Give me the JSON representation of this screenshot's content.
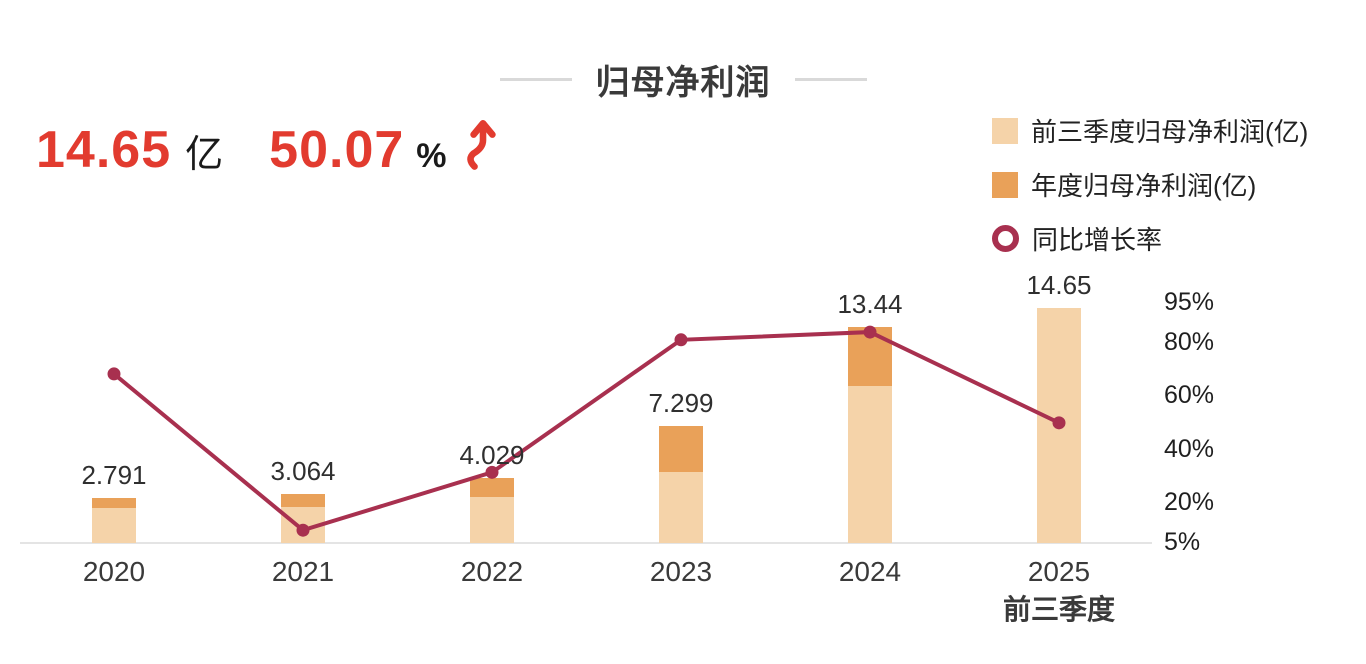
{
  "title": "归母净利润",
  "stat": {
    "value": "14.65",
    "unit": "亿",
    "growth": "50.07",
    "growth_unit": "%"
  },
  "legend": [
    {
      "label": "前三季度归母净利润(亿)",
      "swatch": "square",
      "color": "#f5d3a9"
    },
    {
      "label": "年度归母净利润(亿)",
      "swatch": "square",
      "color": "#e9a159"
    },
    {
      "label": "同比增长率",
      "swatch": "ring",
      "color": "#a8304f"
    }
  ],
  "colors": {
    "accent_red": "#e23b2f",
    "bar_q3": "#f5d3a9",
    "bar_annual": "#e9a159",
    "growth_line": "#a8304f",
    "axis": "#e4e4e4",
    "text": "#3a3a3a"
  },
  "chart_data": {
    "type": "bar",
    "subtype": "stacked-bar-with-line",
    "title": "归母净利润",
    "categories": [
      "2020",
      "2021",
      "2022",
      "2023",
      "2024",
      "2025"
    ],
    "category_sublabels": [
      "",
      "",
      "",
      "",
      "",
      "前三季度"
    ],
    "series": [
      {
        "name": "前三季度归母净利润(亿)",
        "type": "bar",
        "color": "#f5d3a9",
        "values": [
          2.18,
          2.24,
          2.87,
          4.43,
          9.76,
          14.65
        ]
      },
      {
        "name": "年度归母净利润(亿)",
        "type": "bar",
        "color": "#e9a159",
        "values": [
          2.791,
          3.064,
          4.029,
          7.299,
          13.44,
          null
        ]
      },
      {
        "name": "同比增长率",
        "type": "line",
        "color": "#a8304f",
        "unit": "%",
        "values": [
          68.4,
          9.8,
          31.5,
          81.2,
          84.1,
          50.07
        ]
      }
    ],
    "bar_labels": [
      "2.791",
      "3.064",
      "4.029",
      "7.299",
      "13.44",
      "14.65"
    ],
    "right_axis": {
      "ticks": [
        "95%",
        "80%",
        "60%",
        "40%",
        "20%",
        "5%"
      ],
      "tick_values": [
        95,
        80,
        60,
        40,
        20,
        5
      ],
      "min": 5,
      "max": 95
    },
    "grid": false,
    "legend_position": "top-right"
  }
}
